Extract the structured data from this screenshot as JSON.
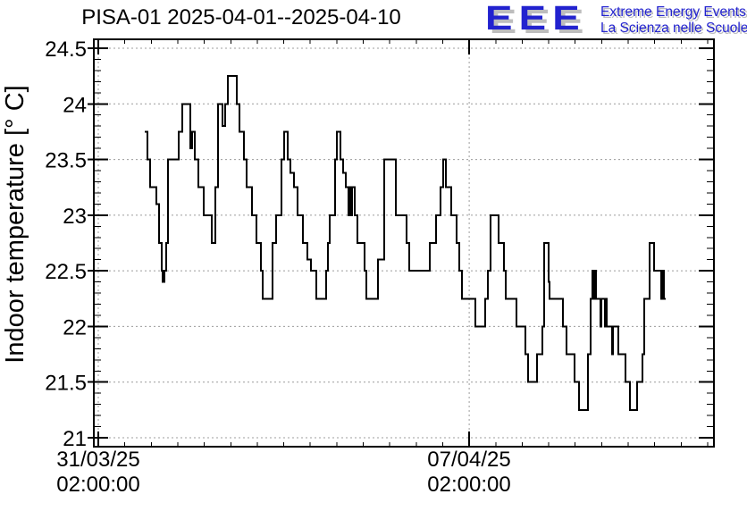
{
  "header": {
    "title": "PISA-01 2025-04-01--2025-04-10",
    "logo": {
      "acronym": "EEE",
      "line1": "Extreme Energy Events",
      "line2": "La Scienza nelle Scuole",
      "color_blue": "#2222cf",
      "shadow_gray": "#bdbdbd"
    }
  },
  "chart_data": {
    "type": "line",
    "subtype": "step",
    "title": "PISA-01 2025-04-01--2025-04-10",
    "ylabel": "Indoor temperature [° C]",
    "xlabel": "",
    "ylim": [
      21,
      24.5
    ],
    "grid": true,
    "grid_color": "#9c9c9c",
    "y_major_ticks": [
      21,
      21.5,
      22,
      22.5,
      23,
      23.5,
      24,
      24.5
    ],
    "y_tick_labels": [
      "21",
      "21.5",
      "22",
      "22.5",
      "23",
      "23.5",
      "24",
      "24.5"
    ],
    "y_minor_step": 0.1,
    "x_ticks": [
      {
        "date": "31/03/25",
        "time": "02:00:00",
        "day": 0
      },
      {
        "date": "07/04/25",
        "time": "02:00:00",
        "day": 7
      }
    ],
    "x_minor_step_days": 0.5,
    "series": [
      {
        "name": "Indoor temperature",
        "color": "#000000",
        "x_unit": "days since 31/03/25 02:00:00",
        "y_unit": "°C",
        "points": [
          [
            0.877,
            23.75
          ],
          [
            0.928,
            23.5
          ],
          [
            0.978,
            23.25
          ],
          [
            1.096,
            23.1
          ],
          [
            1.147,
            22.75
          ],
          [
            1.197,
            22.5
          ],
          [
            1.214,
            22.4
          ],
          [
            1.248,
            22.5
          ],
          [
            1.282,
            22.75
          ],
          [
            1.315,
            23.5
          ],
          [
            1.518,
            23.75
          ],
          [
            1.585,
            24.0
          ],
          [
            1.737,
            23.6
          ],
          [
            1.771,
            23.75
          ],
          [
            1.821,
            23.5
          ],
          [
            1.889,
            23.25
          ],
          [
            1.99,
            23.0
          ],
          [
            2.142,
            22.75
          ],
          [
            2.209,
            23.25
          ],
          [
            2.26,
            24.0
          ],
          [
            2.344,
            23.8
          ],
          [
            2.395,
            24.0
          ],
          [
            2.445,
            24.25
          ],
          [
            2.614,
            24.0
          ],
          [
            2.664,
            23.75
          ],
          [
            2.749,
            23.5
          ],
          [
            2.799,
            23.25
          ],
          [
            2.9,
            23.0
          ],
          [
            2.985,
            22.75
          ],
          [
            3.069,
            22.5
          ],
          [
            3.103,
            22.25
          ],
          [
            3.288,
            22.75
          ],
          [
            3.356,
            23.0
          ],
          [
            3.457,
            23.5
          ],
          [
            3.508,
            23.75
          ],
          [
            3.575,
            23.5
          ],
          [
            3.626,
            23.38
          ],
          [
            3.693,
            23.25
          ],
          [
            3.761,
            23.0
          ],
          [
            3.862,
            22.75
          ],
          [
            3.946,
            22.6
          ],
          [
            4.014,
            22.5
          ],
          [
            4.115,
            22.25
          ],
          [
            4.3,
            22.5
          ],
          [
            4.334,
            22.75
          ],
          [
            4.368,
            23.0
          ],
          [
            4.469,
            23.5
          ],
          [
            4.503,
            23.75
          ],
          [
            4.57,
            23.5
          ],
          [
            4.621,
            23.38
          ],
          [
            4.671,
            23.25
          ],
          [
            4.722,
            23.0
          ],
          [
            4.739,
            23.25
          ],
          [
            4.772,
            23.0
          ],
          [
            4.789,
            23.25
          ],
          [
            4.84,
            23.0
          ],
          [
            4.89,
            22.75
          ],
          [
            5.025,
            22.5
          ],
          [
            5.059,
            22.25
          ],
          [
            5.278,
            22.6
          ],
          [
            5.396,
            23.5
          ],
          [
            5.616,
            23.0
          ],
          [
            5.818,
            22.75
          ],
          [
            5.869,
            22.5
          ],
          [
            6.256,
            22.75
          ],
          [
            6.374,
            23.0
          ],
          [
            6.459,
            23.25
          ],
          [
            6.509,
            23.5
          ],
          [
            6.56,
            23.25
          ],
          [
            6.661,
            23.0
          ],
          [
            6.762,
            22.75
          ],
          [
            6.813,
            22.5
          ],
          [
            6.863,
            22.25
          ],
          [
            7.116,
            22.0
          ],
          [
            7.302,
            22.25
          ],
          [
            7.352,
            22.5
          ],
          [
            7.403,
            23.0
          ],
          [
            7.555,
            22.75
          ],
          [
            7.656,
            22.5
          ],
          [
            7.69,
            22.25
          ],
          [
            7.892,
            22.0
          ],
          [
            8.061,
            21.75
          ],
          [
            8.112,
            21.5
          ],
          [
            8.28,
            21.75
          ],
          [
            8.382,
            22.0
          ],
          [
            8.415,
            22.75
          ],
          [
            8.5,
            22.4
          ],
          [
            8.516,
            22.25
          ],
          [
            8.769,
            22.0
          ],
          [
            8.837,
            21.75
          ],
          [
            8.988,
            21.5
          ],
          [
            9.073,
            21.25
          ],
          [
            9.241,
            21.75
          ],
          [
            9.292,
            22.25
          ],
          [
            9.325,
            22.5
          ],
          [
            9.342,
            22.25
          ],
          [
            9.359,
            22.5
          ],
          [
            9.393,
            22.25
          ],
          [
            9.477,
            22.0
          ],
          [
            9.494,
            22.25
          ],
          [
            9.562,
            22.0
          ],
          [
            9.579,
            22.25
          ],
          [
            9.595,
            22.0
          ],
          [
            9.697,
            21.75
          ],
          [
            9.713,
            22.0
          ],
          [
            9.815,
            21.75
          ],
          [
            9.949,
            21.5
          ],
          [
            10.034,
            21.25
          ],
          [
            10.169,
            21.5
          ],
          [
            10.27,
            21.75
          ],
          [
            10.304,
            22.25
          ],
          [
            10.405,
            22.75
          ],
          [
            10.489,
            22.5
          ],
          [
            10.624,
            22.25
          ],
          [
            10.641,
            22.5
          ],
          [
            10.675,
            22.25
          ],
          [
            10.708,
            22.25
          ]
        ]
      }
    ]
  }
}
